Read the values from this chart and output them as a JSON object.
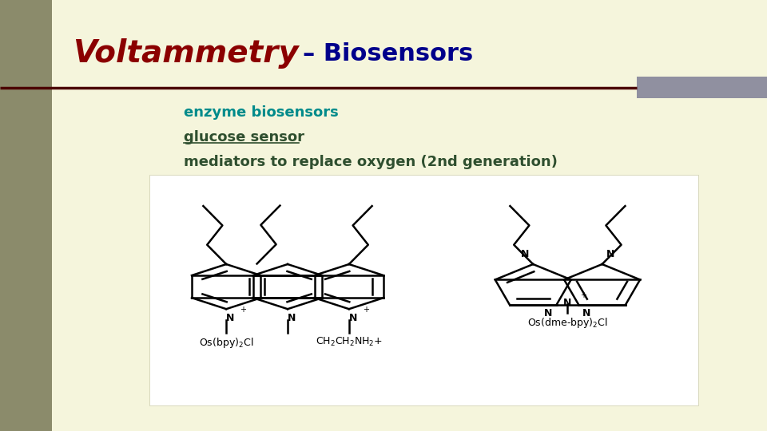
{
  "bg_color": "#f5f5dc",
  "left_bar_color": "#8b8b6b",
  "title_voltammetry": "Voltammetry",
  "title_biosensors": "– Biosensors",
  "title_voltammetry_color": "#8b0000",
  "title_biosensors_color": "#00008b",
  "divider_color": "#4b0000",
  "divider_right_color": "#9090a0",
  "enzyme_text": "enzyme biosensors",
  "enzyme_color": "#008b8b",
  "glucose_text": "glucose sensor",
  "text_color": "#2f4f2f",
  "mediators_text": "mediators to replace oxygen (2nd generation)",
  "font_size_title_volt": 28,
  "font_size_title_bio": 22,
  "font_size_body": 13
}
